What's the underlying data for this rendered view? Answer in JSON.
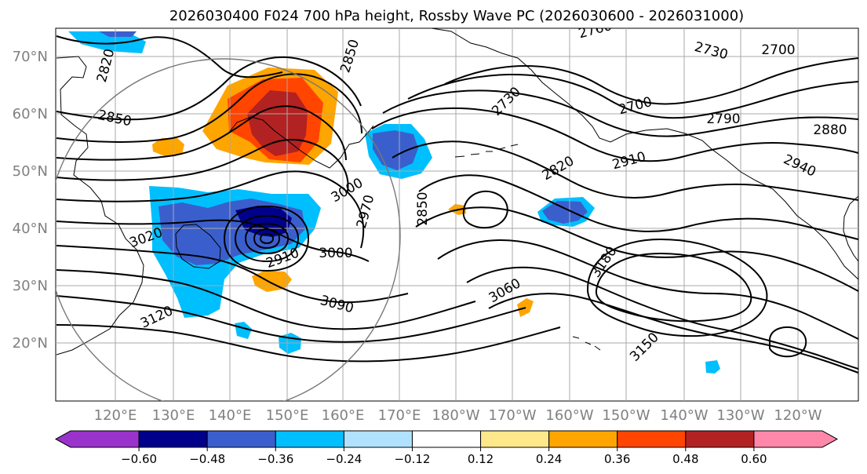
{
  "title": "2026030400 F024 700 hPa height, Rossby Wave PC (2026030600 - 2026031000)",
  "map": {
    "lat_range": [
      10,
      75
    ],
    "lon_labels": [
      "120°E",
      "130°E",
      "140°E",
      "150°E",
      "160°E",
      "170°E",
      "180°W",
      "170°W",
      "160°W",
      "150°W",
      "140°W",
      "130°W",
      "120°W"
    ],
    "lat_labels": [
      "20°N",
      "30°N",
      "40°N",
      "50°N",
      "60°N",
      "70°N"
    ],
    "grid": true,
    "coastline_color": "#000000",
    "contour_color": "#000000",
    "contour_labels": [
      "2820",
      "2850",
      "2850",
      "2760",
      "2730",
      "2700",
      "2730",
      "2700",
      "2790",
      "2880",
      "2820",
      "2910",
      "2940",
      "3000",
      "2970",
      "2850",
      "3020",
      "2910",
      "3000",
      "3120",
      "3090",
      "3060",
      "3180",
      "3150"
    ]
  },
  "colorbar": {
    "colors": [
      "#9933cc",
      "#00008b",
      "#3a5fcd",
      "#00bfff",
      "#b0e2ff",
      "#ffffff",
      "#ffe88a",
      "#ffa500",
      "#ff4500",
      "#b22222",
      "#ff88aa"
    ],
    "tick_labels": [
      "−0.60",
      "−0.48",
      "−0.36",
      "−0.24",
      "−0.12",
      "0.12",
      "0.24",
      "0.36",
      "0.48",
      "0.60"
    ],
    "tick_values": [
      -0.6,
      -0.48,
      -0.36,
      -0.24,
      -0.12,
      0.12,
      0.24,
      0.36,
      0.48,
      0.6
    ]
  },
  "anomalies": [
    {
      "name": "okhotsk-positive-anomaly",
      "color": "#ffa500",
      "level": 0.24
    },
    {
      "name": "okhotsk-strong-positive-anomaly",
      "color": "#ff4500",
      "level": 0.36
    },
    {
      "name": "okhotsk-core-positive-anomaly",
      "color": "#b22222",
      "level": 0.48
    },
    {
      "name": "japan-negative-anomaly",
      "color": "#00bfff",
      "level": -0.24
    },
    {
      "name": "japan-strong-negative-anomaly",
      "color": "#3a5fcd",
      "level": -0.36
    },
    {
      "name": "japan-core-negative-anomaly",
      "color": "#00008b",
      "level": -0.48
    },
    {
      "name": "bering-negative-anomaly",
      "color": "#3a5fcd",
      "level": -0.36
    }
  ]
}
